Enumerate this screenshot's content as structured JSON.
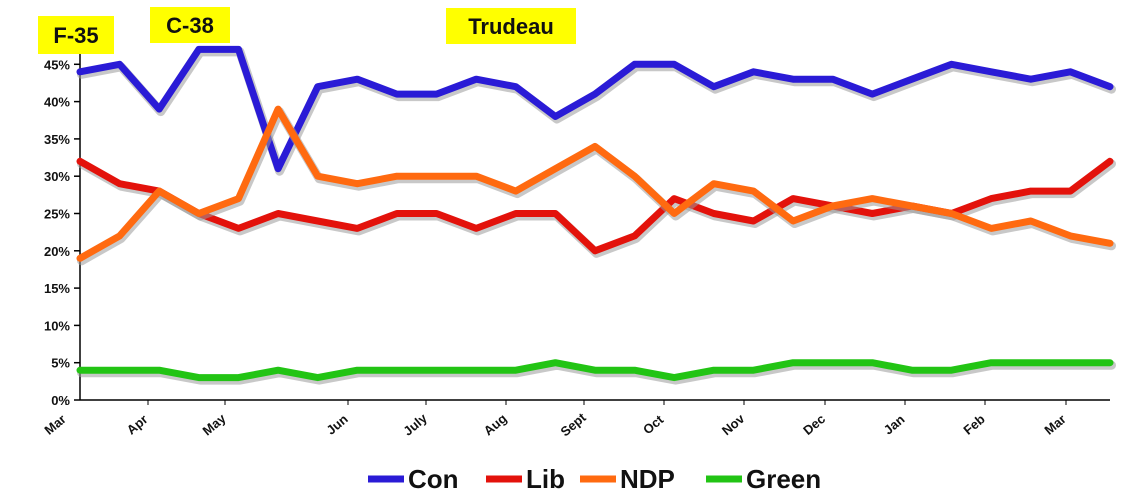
{
  "chart_data": {
    "type": "line",
    "title": "",
    "xlabel": "",
    "ylabel": "",
    "ylim": [
      0,
      50
    ],
    "y_ticks": [
      "0%",
      "5%",
      "10%",
      "15%",
      "20%",
      "25%",
      "30%",
      "35%",
      "40%",
      "45%",
      "50%"
    ],
    "x_tick_labels": [
      "Mar",
      "Apr",
      "May",
      "Jun",
      "July",
      "Aug",
      "Sept",
      "Oct",
      "Nov",
      "Dec",
      "Jan",
      "Feb",
      "Mar"
    ],
    "grid": false,
    "legend_position": "bottom",
    "annotations": [
      "F-35",
      "C-38",
      "Trudeau"
    ],
    "annotation_color": "#ffff00",
    "series": [
      {
        "name": "Con",
        "color": "#2a1bd6",
        "values": [
          44,
          45,
          39,
          47,
          47,
          31,
          42,
          43,
          41,
          41,
          43,
          42,
          38,
          41,
          45,
          45,
          42,
          44,
          43,
          43,
          41,
          43,
          45,
          44,
          43,
          44,
          42
        ]
      },
      {
        "name": "Lib",
        "color": "#e3120b",
        "values": [
          32,
          29,
          28,
          25,
          23,
          25,
          24,
          23,
          25,
          25,
          23,
          25,
          25,
          20,
          22,
          27,
          25,
          24,
          27,
          26,
          25,
          26,
          25,
          27,
          28,
          28,
          32
        ]
      },
      {
        "name": "NDP",
        "color": "#ff6a10",
        "values": [
          19,
          22,
          28,
          25,
          27,
          39,
          30,
          29,
          30,
          30,
          30,
          28,
          31,
          34,
          30,
          25,
          29,
          28,
          24,
          26,
          27,
          26,
          25,
          23,
          24,
          22,
          21
        ]
      },
      {
        "name": "Green",
        "color": "#22c414",
        "values": [
          4,
          4,
          4,
          3,
          3,
          4,
          3,
          4,
          4,
          4,
          4,
          4,
          5,
          4,
          4,
          3,
          4,
          4,
          5,
          5,
          5,
          4,
          4,
          5,
          5,
          5,
          5
        ]
      }
    ]
  }
}
